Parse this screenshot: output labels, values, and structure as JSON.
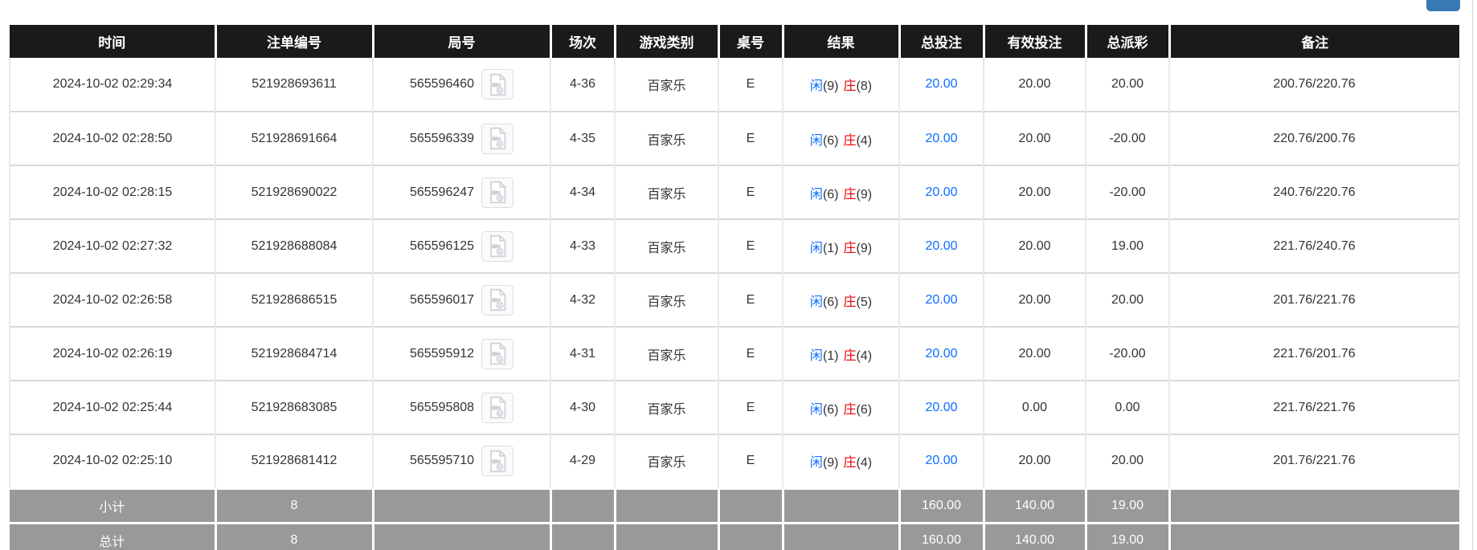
{
  "colors": {
    "header_bg": "#1a1a1a",
    "link_blue": "#0d6efd",
    "player_blue": "#0d6efd",
    "banker_red": "#ee0000",
    "negative_red": "#f40000",
    "summary_bg": "#999999",
    "top_button_blue": "#3679b5"
  },
  "icons": {
    "round_video": "video-file-icon"
  },
  "table": {
    "columns": [
      {
        "key": "time",
        "label": "时间"
      },
      {
        "key": "bet_id",
        "label": "注单编号"
      },
      {
        "key": "round_id",
        "label": "局号"
      },
      {
        "key": "session",
        "label": "场次"
      },
      {
        "key": "game_type",
        "label": "游戏类别"
      },
      {
        "key": "table_no",
        "label": "桌号"
      },
      {
        "key": "result",
        "label": "结果"
      },
      {
        "key": "total_bet",
        "label": "总投注"
      },
      {
        "key": "valid_bet",
        "label": "有效投注"
      },
      {
        "key": "total_payout",
        "label": "总派彩"
      },
      {
        "key": "remark",
        "label": "备注"
      }
    ],
    "rows": [
      {
        "time": "2024-10-02 02:29:34",
        "bet_id": "521928693611",
        "round_id": "565596460",
        "session": "4-36",
        "game_type": "百家乐",
        "table_no": "E",
        "result": {
          "player_label": "闲",
          "player_score": "(9)",
          "banker_label": "庄",
          "banker_score": "(8)"
        },
        "total_bet": "20.00",
        "valid_bet": "20.00",
        "total_payout": "20.00",
        "remark": "200.76/220.76"
      },
      {
        "time": "2024-10-02 02:28:50",
        "bet_id": "521928691664",
        "round_id": "565596339",
        "session": "4-35",
        "game_type": "百家乐",
        "table_no": "E",
        "result": {
          "player_label": "闲",
          "player_score": "(6)",
          "banker_label": "庄",
          "banker_score": "(4)"
        },
        "total_bet": "20.00",
        "valid_bet": "20.00",
        "total_payout": "-20.00",
        "remark": "220.76/200.76"
      },
      {
        "time": "2024-10-02 02:28:15",
        "bet_id": "521928690022",
        "round_id": "565596247",
        "session": "4-34",
        "game_type": "百家乐",
        "table_no": "E",
        "result": {
          "player_label": "闲",
          "player_score": "(6)",
          "banker_label": "庄",
          "banker_score": "(9)"
        },
        "total_bet": "20.00",
        "valid_bet": "20.00",
        "total_payout": "-20.00",
        "remark": "240.76/220.76"
      },
      {
        "time": "2024-10-02 02:27:32",
        "bet_id": "521928688084",
        "round_id": "565596125",
        "session": "4-33",
        "game_type": "百家乐",
        "table_no": "E",
        "result": {
          "player_label": "闲",
          "player_score": "(1)",
          "banker_label": "庄",
          "banker_score": "(9)"
        },
        "total_bet": "20.00",
        "valid_bet": "20.00",
        "total_payout": "19.00",
        "remark": "221.76/240.76"
      },
      {
        "time": "2024-10-02 02:26:58",
        "bet_id": "521928686515",
        "round_id": "565596017",
        "session": "4-32",
        "game_type": "百家乐",
        "table_no": "E",
        "result": {
          "player_label": "闲",
          "player_score": "(6)",
          "banker_label": "庄",
          "banker_score": "(5)"
        },
        "total_bet": "20.00",
        "valid_bet": "20.00",
        "total_payout": "20.00",
        "remark": "201.76/221.76"
      },
      {
        "time": "2024-10-02 02:26:19",
        "bet_id": "521928684714",
        "round_id": "565595912",
        "session": "4-31",
        "game_type": "百家乐",
        "table_no": "E",
        "result": {
          "player_label": "闲",
          "player_score": "(1)",
          "banker_label": "庄",
          "banker_score": "(4)"
        },
        "total_bet": "20.00",
        "valid_bet": "20.00",
        "total_payout": "-20.00",
        "remark": "221.76/201.76"
      },
      {
        "time": "2024-10-02 02:25:44",
        "bet_id": "521928683085",
        "round_id": "565595808",
        "session": "4-30",
        "game_type": "百家乐",
        "table_no": "E",
        "result": {
          "player_label": "闲",
          "player_score": "(6)",
          "banker_label": "庄",
          "banker_score": "(6)"
        },
        "total_bet": "20.00",
        "valid_bet": "0.00",
        "total_payout": "0.00",
        "remark": "221.76/221.76"
      },
      {
        "time": "2024-10-02 02:25:10",
        "bet_id": "521928681412",
        "round_id": "565595710",
        "session": "4-29",
        "game_type": "百家乐",
        "table_no": "E",
        "result": {
          "player_label": "闲",
          "player_score": "(9)",
          "banker_label": "庄",
          "banker_score": "(4)"
        },
        "total_bet": "20.00",
        "valid_bet": "20.00",
        "total_payout": "20.00",
        "remark": "201.76/221.76"
      }
    ],
    "subtotal": {
      "label": "小计",
      "count": "8",
      "total_bet": "160.00",
      "valid_bet": "140.00",
      "total_payout": "19.00"
    },
    "total": {
      "label": "总计",
      "count": "8",
      "total_bet": "160.00",
      "valid_bet": "140.00",
      "total_payout": "19.00"
    }
  }
}
